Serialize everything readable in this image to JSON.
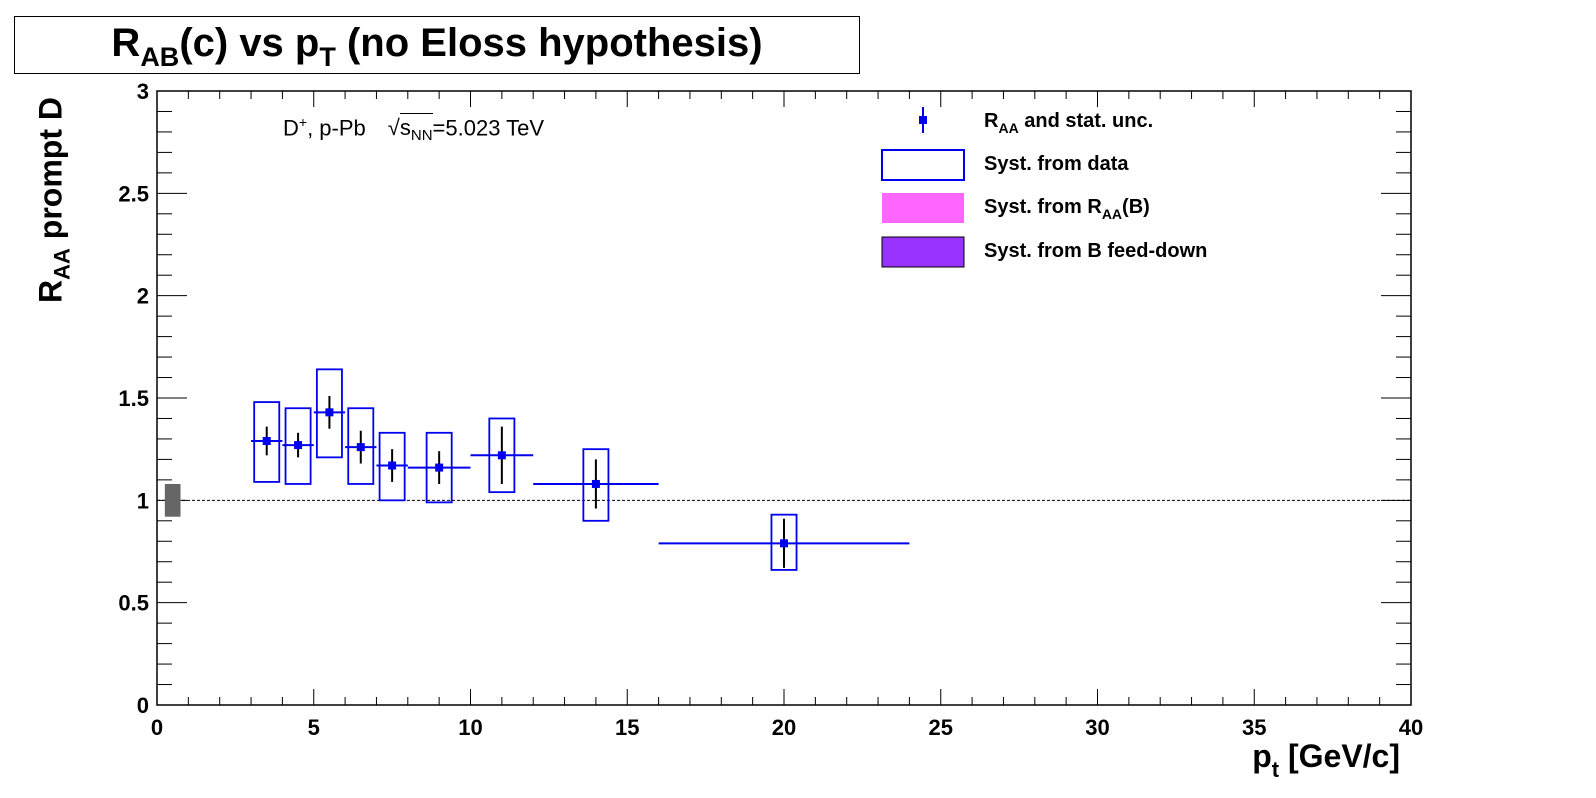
{
  "title": {
    "main": "R",
    "sub": "AB",
    "mid": "(c) vs p",
    "sub2": "T",
    "tail": " (no Eloss hypothesis)"
  },
  "annotation": {
    "particle": "D",
    "particle_sup": "+",
    "system": ",  p-Pb",
    "sqrt_symbol": "√",
    "s": "s",
    "s_sub": "NN",
    "energy": "=5.023 TeV"
  },
  "legend": {
    "entry1": {
      "text_main": "R",
      "text_sub": "AA",
      "text_tail": " and stat. unc."
    },
    "entry2": {
      "text": "Syst. from data"
    },
    "entry3": {
      "text_main": "Syst. from R",
      "text_sub": "AA",
      "text_tail": "(B)"
    },
    "entry4": {
      "text": "Syst. from B feed-down"
    }
  },
  "chart_data": {
    "type": "scatter",
    "title": "RAB(c) vs pT (no Eloss hypothesis)",
    "xlabel": "pt [GeV/c]",
    "ylabel": "RAA prompt D",
    "xlim": [
      0,
      40
    ],
    "ylim": [
      0,
      3
    ],
    "x_major_ticks": [
      0,
      5,
      10,
      15,
      20,
      25,
      30,
      35,
      40
    ],
    "y_major_ticks": [
      0,
      0.5,
      1,
      1.5,
      2,
      2.5,
      3
    ],
    "x_tick_labels": [
      "0",
      "5",
      "10",
      "15",
      "20",
      "25",
      "30",
      "35",
      "40"
    ],
    "y_tick_labels": [
      "0",
      "0.5",
      "1",
      "1.5",
      "2",
      "2.5",
      "3"
    ],
    "reference_line": 1,
    "grid": false,
    "legend_position": "top-right",
    "colors": {
      "points": "#0000ee",
      "stat_errors": "#000000",
      "syst_data": "#0000ee",
      "syst_raa_b": "#ff66ff",
      "syst_feeddown": "#9933ff",
      "norm_box": "#666666"
    },
    "normalization_uncertainty": {
      "x": [
        0.25,
        0.75
      ],
      "y": [
        0.92,
        1.08
      ]
    },
    "series": [
      {
        "name": "RAA and stat. unc.",
        "points": [
          {
            "x": 3.5,
            "y": 1.29,
            "xlow": 3,
            "xhigh": 4,
            "stat": 0.07,
            "syst_low": 1.09,
            "syst_high": 1.48,
            "box_half_width": 0.4
          },
          {
            "x": 4.5,
            "y": 1.27,
            "xlow": 4,
            "xhigh": 5,
            "stat": 0.06,
            "syst_low": 1.08,
            "syst_high": 1.45,
            "box_half_width": 0.4
          },
          {
            "x": 5.5,
            "y": 1.43,
            "xlow": 5,
            "xhigh": 6,
            "stat": 0.08,
            "syst_low": 1.21,
            "syst_high": 1.64,
            "box_half_width": 0.4
          },
          {
            "x": 6.5,
            "y": 1.26,
            "xlow": 6,
            "xhigh": 7,
            "stat": 0.08,
            "syst_low": 1.08,
            "syst_high": 1.45,
            "box_half_width": 0.4
          },
          {
            "x": 7.5,
            "y": 1.17,
            "xlow": 7,
            "xhigh": 8,
            "stat": 0.08,
            "syst_low": 1.0,
            "syst_high": 1.33,
            "box_half_width": 0.4
          },
          {
            "x": 9,
            "y": 1.16,
            "xlow": 8,
            "xhigh": 10,
            "stat": 0.08,
            "syst_low": 0.99,
            "syst_high": 1.33,
            "box_half_width": 0.4
          },
          {
            "x": 11,
            "y": 1.22,
            "xlow": 10,
            "xhigh": 12,
            "stat": 0.14,
            "syst_low": 1.04,
            "syst_high": 1.4,
            "box_half_width": 0.4
          },
          {
            "x": 14,
            "y": 1.08,
            "xlow": 12,
            "xhigh": 16,
            "stat": 0.12,
            "syst_low": 0.9,
            "syst_high": 1.25,
            "box_half_width": 0.4
          },
          {
            "x": 20,
            "y": 0.79,
            "xlow": 16,
            "xhigh": 24,
            "stat": 0.12,
            "syst_low": 0.66,
            "syst_high": 0.93,
            "box_half_width": 0.4
          }
        ]
      }
    ]
  }
}
